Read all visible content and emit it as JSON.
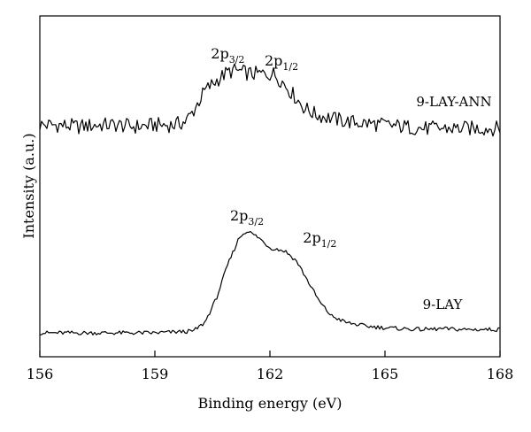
{
  "chart_data": {
    "type": "line",
    "title": "",
    "xlabel": "Binding energy (eV)",
    "ylabel": "Intensity (a.u.)",
    "xlim": [
      156,
      168
    ],
    "x_ticks": [
      "156",
      "159",
      "162",
      "165",
      "168"
    ],
    "ylim": [
      0,
      1
    ],
    "y_ticks": "none",
    "grid": false,
    "legend": "none (series labeled inline at right)",
    "series": [
      {
        "name": "9-LAY-ANN",
        "points": [
          [
            156.0,
            0.68
          ],
          [
            156.5,
            0.68
          ],
          [
            157.0,
            0.675
          ],
          [
            157.5,
            0.68
          ],
          [
            158.0,
            0.68
          ],
          [
            158.5,
            0.675
          ],
          [
            159.0,
            0.68
          ],
          [
            159.5,
            0.68
          ],
          [
            159.8,
            0.69
          ],
          [
            160.0,
            0.72
          ],
          [
            160.3,
            0.78
          ],
          [
            160.6,
            0.81
          ],
          [
            160.9,
            0.835
          ],
          [
            161.1,
            0.84
          ],
          [
            161.5,
            0.83
          ],
          [
            161.9,
            0.83
          ],
          [
            162.1,
            0.83
          ],
          [
            162.3,
            0.81
          ],
          [
            162.6,
            0.77
          ],
          [
            162.9,
            0.73
          ],
          [
            163.2,
            0.71
          ],
          [
            163.6,
            0.7
          ],
          [
            164.0,
            0.69
          ],
          [
            164.5,
            0.685
          ],
          [
            165.0,
            0.68
          ],
          [
            165.5,
            0.675
          ],
          [
            166.0,
            0.67
          ],
          [
            166.5,
            0.67
          ],
          [
            167.0,
            0.67
          ],
          [
            167.5,
            0.67
          ],
          [
            168.0,
            0.67
          ]
        ]
      },
      {
        "name": "9-LAY",
        "points": [
          [
            156.0,
            0.07
          ],
          [
            157.0,
            0.07
          ],
          [
            158.0,
            0.07
          ],
          [
            159.0,
            0.07
          ],
          [
            160.0,
            0.075
          ],
          [
            160.3,
            0.1
          ],
          [
            160.6,
            0.17
          ],
          [
            160.9,
            0.27
          ],
          [
            161.2,
            0.35
          ],
          [
            161.4,
            0.37
          ],
          [
            161.7,
            0.35
          ],
          [
            162.0,
            0.32
          ],
          [
            162.4,
            0.31
          ],
          [
            162.7,
            0.28
          ],
          [
            163.0,
            0.22
          ],
          [
            163.3,
            0.16
          ],
          [
            163.6,
            0.12
          ],
          [
            164.0,
            0.1
          ],
          [
            164.5,
            0.09
          ],
          [
            165.0,
            0.085
          ],
          [
            165.5,
            0.082
          ],
          [
            166.0,
            0.08
          ],
          [
            166.5,
            0.082
          ],
          [
            167.0,
            0.08
          ],
          [
            167.5,
            0.08
          ],
          [
            168.0,
            0.08
          ]
        ]
      }
    ],
    "annotations": [
      {
        "series": "9-LAY-ANN",
        "main": "2p",
        "sub": "3/2",
        "x": 160.9,
        "y": 0.875
      },
      {
        "series": "9-LAY-ANN",
        "main": "2p",
        "sub": "1/2",
        "x": 162.3,
        "y": 0.855
      },
      {
        "series": "9-LAY",
        "main": "2p",
        "sub": "3/2",
        "x": 161.4,
        "y": 0.4
      },
      {
        "series": "9-LAY",
        "main": "2p",
        "sub": "1/2",
        "x": 163.3,
        "y": 0.335
      }
    ],
    "series_labels": [
      {
        "text": "9-LAY-ANN",
        "x": 166.8,
        "y": 0.735
      },
      {
        "text": "9-LAY",
        "x": 166.5,
        "y": 0.14
      }
    ]
  }
}
